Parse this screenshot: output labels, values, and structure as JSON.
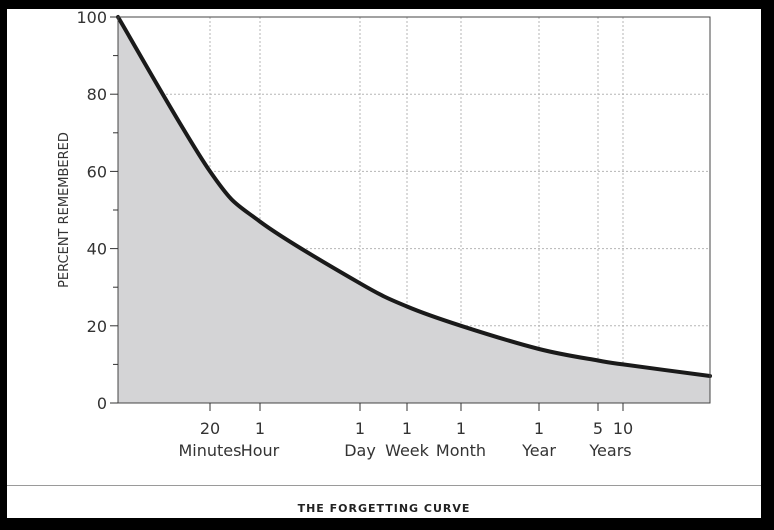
{
  "chart_data": {
    "type": "area",
    "title": "THE FORGETTING CURVE",
    "xlabel": "",
    "ylabel": "PERCENT REMEMBERED",
    "ylim": [
      0,
      100
    ],
    "y_ticks": [
      0,
      20,
      40,
      60,
      80,
      100
    ],
    "x_scale": "log (elapsed time since learning)",
    "x_ticks": [
      {
        "top": "20",
        "bottom": "Minutes"
      },
      {
        "top": "1",
        "bottom": "Hour"
      },
      {
        "top": "1",
        "bottom": "Day"
      },
      {
        "top": "1",
        "bottom": "Week"
      },
      {
        "top": "1",
        "bottom": "Month"
      },
      {
        "top": "1",
        "bottom": "Year"
      },
      {
        "top": "5",
        "bottom": ""
      },
      {
        "top": "10",
        "bottom": "Years"
      }
    ],
    "points": [
      {
        "x": "0",
        "y": 100
      },
      {
        "x": "20 Minutes",
        "y": 60
      },
      {
        "x": "1 Hour",
        "y": 47
      },
      {
        "x": "1 Day",
        "y": 31
      },
      {
        "x": "1 Week",
        "y": 25
      },
      {
        "x": "1 Month",
        "y": 20
      },
      {
        "x": "1 Year",
        "y": 14
      },
      {
        "x": "5 Years",
        "y": 11
      },
      {
        "x": "10 Years",
        "y": 10
      },
      {
        "x": "end",
        "y": 7
      }
    ],
    "grid": true,
    "fill_color": "#d4d4d6",
    "line_color": "#1a1a1a"
  }
}
